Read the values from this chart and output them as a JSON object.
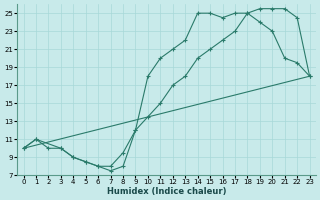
{
  "xlabel": "Humidex (Indice chaleur)",
  "background_color": "#c8eaea",
  "grid_color": "#a8d8d8",
  "line_color": "#2a7a6a",
  "xlim": [
    -0.5,
    23.5
  ],
  "ylim": [
    7,
    26
  ],
  "xticks": [
    0,
    1,
    2,
    3,
    4,
    5,
    6,
    7,
    8,
    9,
    10,
    11,
    12,
    13,
    14,
    15,
    16,
    17,
    18,
    19,
    20,
    21,
    22,
    23
  ],
  "yticks": [
    7,
    9,
    11,
    13,
    15,
    17,
    19,
    21,
    23,
    25
  ],
  "line1_x": [
    0,
    1,
    2,
    3,
    4,
    5,
    6,
    7,
    8,
    9,
    10,
    11,
    12,
    13,
    14,
    15,
    16,
    17,
    18,
    19,
    20,
    21,
    22,
    23
  ],
  "line1_y": [
    10,
    11,
    10,
    10,
    9,
    8.5,
    8,
    8,
    9.5,
    12,
    13.5,
    15,
    17,
    18,
    20,
    21,
    22,
    23,
    25,
    25.5,
    25.5,
    25.5,
    24.5,
    18
  ],
  "line2_x": [
    0,
    1,
    3,
    4,
    5,
    6,
    7,
    8,
    9,
    10,
    11,
    12,
    13,
    14,
    15,
    16,
    17,
    18,
    19,
    20,
    21,
    22,
    23
  ],
  "line2_y": [
    10,
    11,
    10,
    9,
    8.5,
    8,
    7.5,
    8,
    12,
    18,
    20,
    21,
    22,
    25,
    25,
    24.5,
    25,
    25,
    24,
    23,
    20,
    19.5,
    18
  ],
  "line3_x": [
    0,
    23
  ],
  "line3_y": [
    10,
    18
  ]
}
